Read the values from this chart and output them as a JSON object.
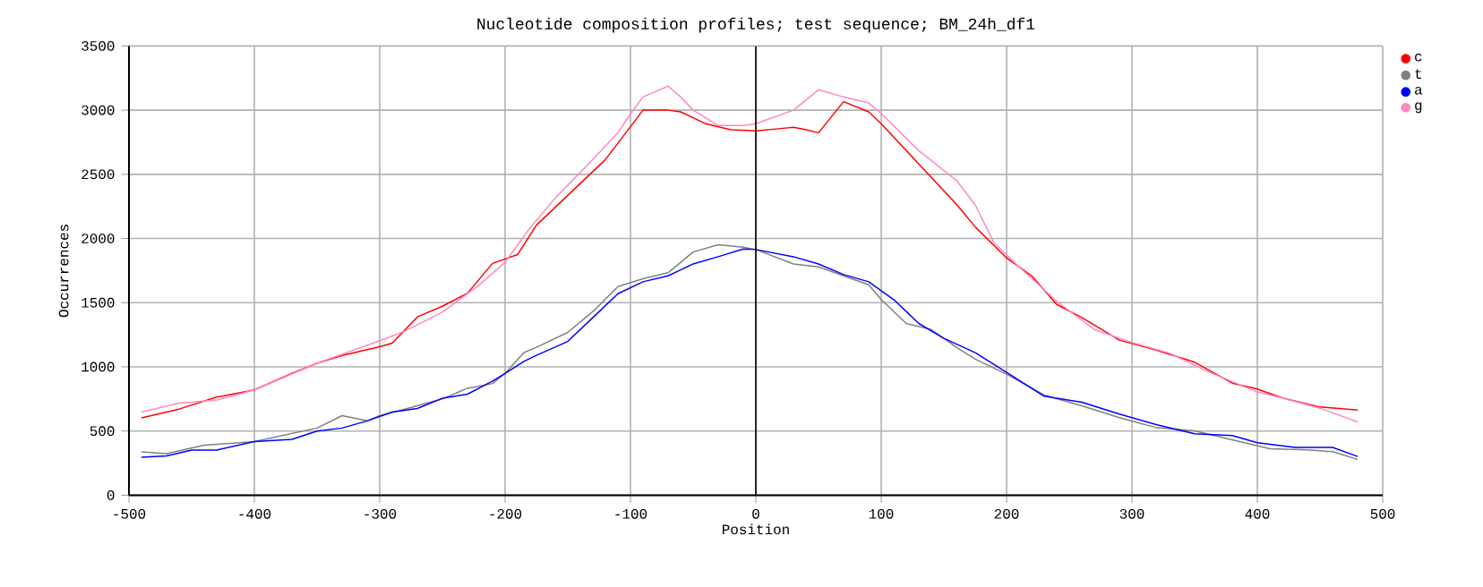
{
  "chart_data": {
    "type": "line",
    "title": "Nucleotide composition profiles; test sequence; BM_24h_df1",
    "xlabel": "Position",
    "ylabel": "Occurrences",
    "xlim": [
      -500,
      500
    ],
    "xticks": [
      -500,
      -400,
      -300,
      -200,
      -100,
      0,
      100,
      200,
      300,
      400,
      500
    ],
    "ylim": [
      0,
      3500
    ],
    "yticks": [
      0,
      500,
      1000,
      1500,
      2000,
      2500,
      3000,
      3500
    ],
    "grid": true,
    "legend": "top right",
    "ref_lines": [
      {
        "axis": "x",
        "value": 0,
        "color": "#000000"
      }
    ],
    "series": [
      {
        "name": "c",
        "color": "#ff0000",
        "x": [
          -490,
          -460,
          -430,
          -400,
          -370,
          -350,
          -330,
          -300,
          -290,
          -270,
          -250,
          -230,
          -210,
          -190,
          -175,
          -150,
          -120,
          -100,
          -90,
          -70,
          -60,
          -40,
          -20,
          0,
          20,
          30,
          40,
          50,
          70,
          90,
          100,
          120,
          140,
          160,
          175,
          200,
          220,
          240,
          260,
          290,
          320,
          350,
          380,
          400,
          420,
          450,
          480
        ],
        "values": [
          602,
          671,
          764,
          820,
          949,
          1028,
          1088,
          1157,
          1185,
          1389,
          1472,
          1574,
          1806,
          1875,
          2104,
          2336,
          2615,
          2871,
          3000,
          3000,
          2987,
          2894,
          2847,
          2838,
          2857,
          2866,
          2847,
          2824,
          3066,
          2987,
          2894,
          2685,
          2476,
          2267,
          2090,
          1849,
          1709,
          1486,
          1384,
          1208,
          1129,
          1036,
          873,
          827,
          757,
          687,
          664
        ]
      },
      {
        "name": "t",
        "color": "#808080",
        "x": [
          -490,
          -470,
          -440,
          -400,
          -350,
          -330,
          -310,
          -300,
          -280,
          -250,
          -230,
          -210,
          -200,
          -185,
          -175,
          -150,
          -130,
          -110,
          -90,
          -70,
          -50,
          -30,
          -10,
          0,
          30,
          50,
          70,
          90,
          100,
          120,
          140,
          160,
          175,
          200,
          230,
          260,
          290,
          320,
          350,
          380,
          410,
          440,
          460,
          480
        ],
        "values": [
          338,
          324,
          389,
          417,
          523,
          620,
          579,
          620,
          671,
          750,
          833,
          870,
          949,
          1111,
          1152,
          1268,
          1431,
          1626,
          1686,
          1733,
          1895,
          1951,
          1932,
          1914,
          1802,
          1779,
          1709,
          1640,
          1524,
          1338,
          1291,
          1152,
          1060,
          943,
          780,
          697,
          604,
          525,
          502,
          432,
          362,
          353,
          339,
          279
        ]
      },
      {
        "name": "a",
        "color": "#0000ff",
        "x": [
          -490,
          -470,
          -450,
          -430,
          -400,
          -370,
          -350,
          -330,
          -310,
          -290,
          -270,
          -250,
          -230,
          -210,
          -200,
          -185,
          -175,
          -150,
          -130,
          -110,
          -90,
          -70,
          -50,
          -30,
          -10,
          0,
          30,
          50,
          70,
          90,
          110,
          130,
          150,
          175,
          200,
          230,
          260,
          290,
          320,
          350,
          380,
          400,
          430,
          460,
          480
        ],
        "values": [
          296,
          306,
          352,
          352,
          417,
          435,
          500,
          523,
          579,
          648,
          676,
          755,
          787,
          889,
          949,
          1042,
          1090,
          1198,
          1384,
          1570,
          1663,
          1709,
          1802,
          1858,
          1918,
          1914,
          1858,
          1802,
          1719,
          1663,
          1524,
          1338,
          1222,
          1110,
          957,
          771,
          725,
          632,
          548,
          478,
          464,
          409,
          372,
          372,
          302
        ]
      },
      {
        "name": "g",
        "color": "#ff88c0",
        "x": [
          -490,
          -460,
          -430,
          -400,
          -350,
          -300,
          -280,
          -250,
          -220,
          -200,
          -180,
          -160,
          -130,
          -110,
          -100,
          -90,
          -70,
          -60,
          -50,
          -30,
          -10,
          0,
          30,
          50,
          70,
          90,
          100,
          130,
          160,
          175,
          190,
          210,
          240,
          270,
          300,
          330,
          360,
          400,
          420,
          450,
          480
        ],
        "values": [
          648,
          718,
          741,
          820,
          1028,
          1204,
          1278,
          1426,
          1644,
          1815,
          2084,
          2315,
          2615,
          2824,
          2973,
          3103,
          3187,
          3103,
          3000,
          2880,
          2880,
          2894,
          3000,
          3159,
          3103,
          3056,
          2973,
          2685,
          2453,
          2262,
          1965,
          1779,
          1510,
          1291,
          1189,
          1106,
          966,
          804,
          757,
          678,
          571
        ]
      }
    ]
  }
}
